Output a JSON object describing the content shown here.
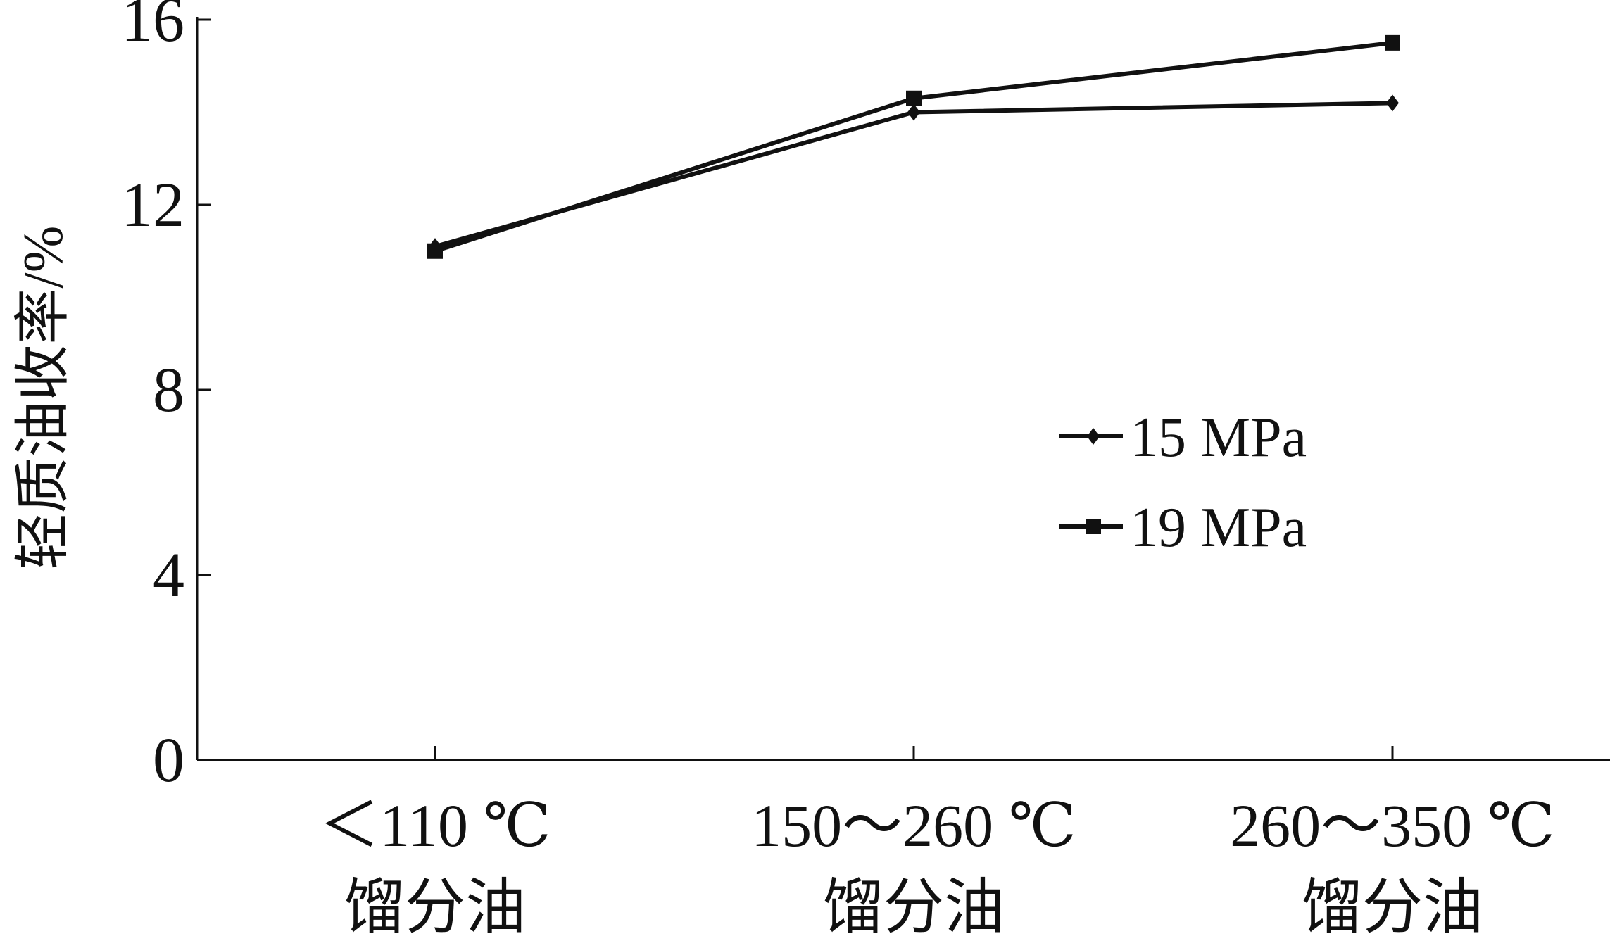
{
  "chart_data": {
    "type": "line",
    "ylabel": "轻质油收率/%",
    "xlabel": "",
    "ylim": [
      0,
      16
    ],
    "yticks": [
      0,
      4,
      8,
      12,
      16
    ],
    "categories": [
      {
        "line1": "＜110 ℃",
        "line2": "馏分油"
      },
      {
        "line1": "150～260 ℃",
        "line2": "馏分油"
      },
      {
        "line1": "260～350 ℃",
        "line2": "馏分油"
      }
    ],
    "series": [
      {
        "name": "15 MPa",
        "marker": "diamond",
        "values": [
          11.1,
          14.0,
          14.2
        ]
      },
      {
        "name": "19 MPa",
        "marker": "square",
        "values": [
          11.0,
          14.3,
          15.5
        ]
      }
    ],
    "legend_position": "right",
    "grid": false,
    "line_color": "#111111"
  }
}
